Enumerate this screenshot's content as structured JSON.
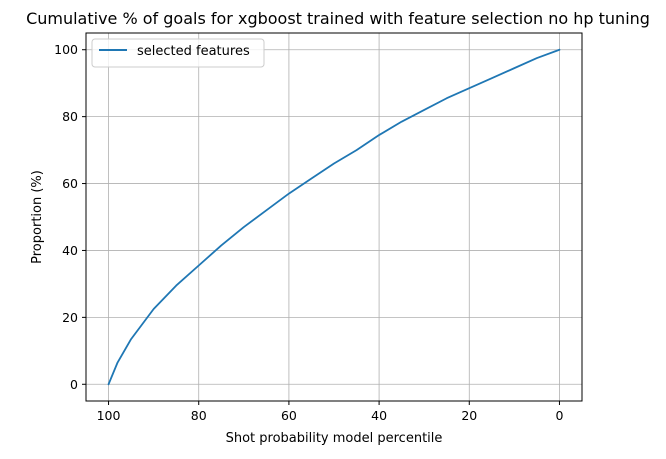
{
  "chart_data": {
    "type": "line",
    "title": "Cumulative % of goals for xgboost trained with feature selection no hp tuning",
    "xlabel": "Shot probability model percentile",
    "ylabel": "Proportion (%)",
    "xlim": [
      105,
      -5
    ],
    "ylim": [
      -5,
      105
    ],
    "x_inverted": true,
    "grid": true,
    "legend_position": "upper-left",
    "xticks": [
      100,
      80,
      60,
      40,
      20,
      0
    ],
    "yticks": [
      0,
      20,
      40,
      60,
      80,
      100
    ],
    "series": [
      {
        "name": "selected features",
        "color": "#1f77b4",
        "x": [
          100,
          98,
          95,
          90,
          85,
          80,
          75,
          70,
          65,
          60,
          55,
          50,
          45,
          40,
          35,
          30,
          25,
          20,
          15,
          10,
          5,
          0
        ],
        "y": [
          0,
          6.5,
          13.5,
          22.5,
          29.5,
          35.5,
          41.5,
          47,
          52,
          57,
          61.5,
          66,
          70,
          74.5,
          78.5,
          82,
          85.5,
          88.5,
          91.5,
          94.5,
          97.5,
          100
        ]
      }
    ]
  }
}
